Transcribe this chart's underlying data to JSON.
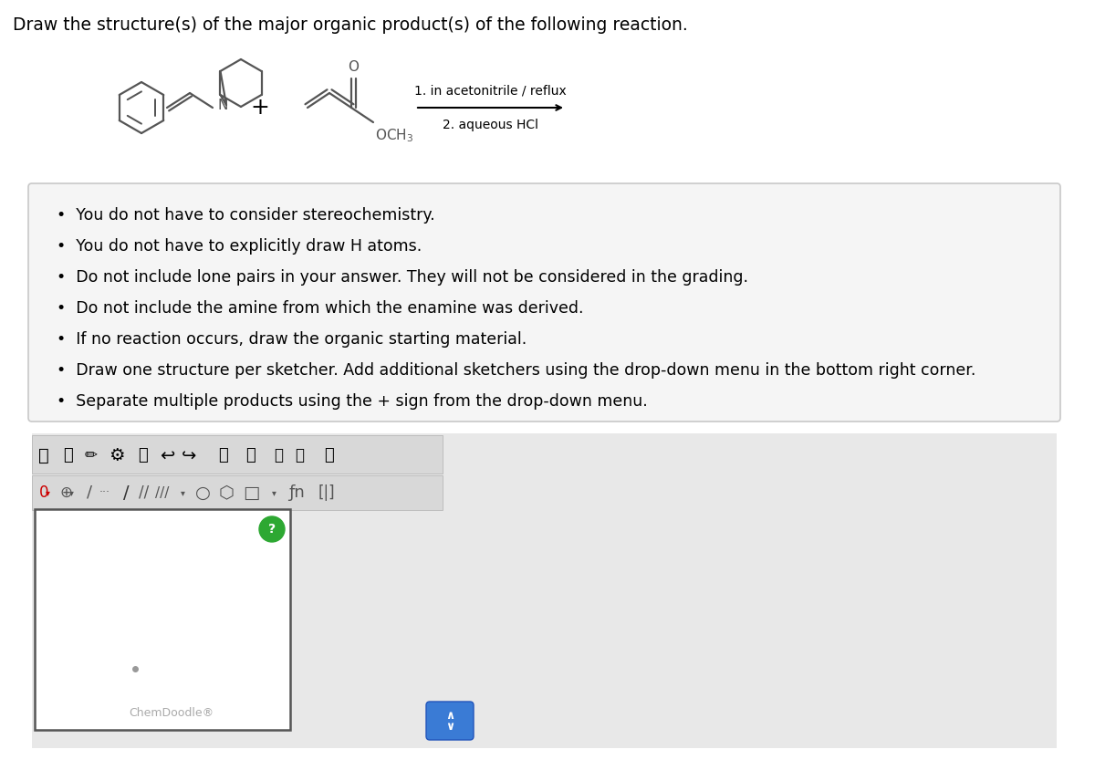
{
  "title": "Draw the structure(s) of the major organic product(s) of the following reaction.",
  "title_fontsize": 13.5,
  "bullet_points": [
    "You do not have to consider stereochemistry.",
    "You do not have to explicitly draw H atoms.",
    "Do not include lone pairs in your answer. They will not be considered in the grading.",
    "Do not include the amine from which the enamine was derived.",
    "If no reaction occurs, draw the organic starting material.",
    "Draw one structure per sketcher. Add additional sketchers using the drop-down menu in the bottom right corner.",
    "Separate multiple products using the + sign from the drop-down menu."
  ],
  "bullet_fontsize": 12.5,
  "reaction_label1": "1. in acetonitrile / reflux",
  "reaction_label2": "2. aqueous HCl",
  "background_color": "#ffffff",
  "page_bg": "#f0f0f0",
  "box_bg_color": "#f5f5f5",
  "box_border_color": "#c8c8c8",
  "line_color": "#555555",
  "sketch_border": "#555555",
  "chemdoodle_text_color": "#aaaaaa",
  "btn_color": "#3a7bd5",
  "green_circle": "#2da832",
  "dot_color": "#999999"
}
